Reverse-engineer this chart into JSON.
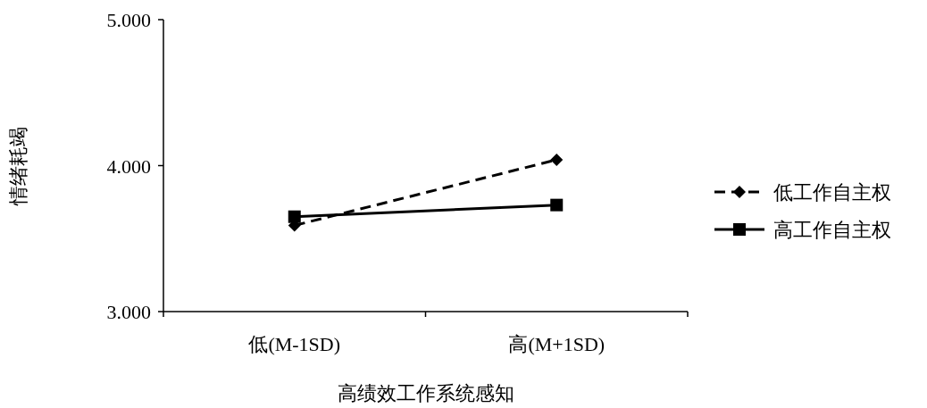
{
  "chart_data": {
    "type": "line",
    "xlabel": "高绩效工作系统感知",
    "ylabel": "情绪耗竭",
    "categories": [
      "低(M-1SD)",
      "高(M+1SD)"
    ],
    "series": [
      {
        "name": "低工作自主权",
        "color": "#000000",
        "values": [
          3.59,
          4.04
        ],
        "marker": "diamond",
        "line_style": "dashed"
      },
      {
        "name": "高工作自主权",
        "color": "#000000",
        "values": [
          3.65,
          3.73
        ],
        "marker": "square",
        "line_style": "solid"
      }
    ],
    "ylim": [
      3,
      5
    ],
    "yticks": [
      {
        "value": 3,
        "label": "3.000"
      },
      {
        "value": 4,
        "label": "4.000"
      },
      {
        "value": 5,
        "label": "5.000"
      }
    ],
    "legend": "right"
  }
}
